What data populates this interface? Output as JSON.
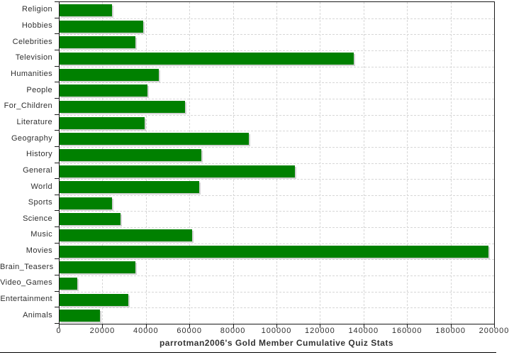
{
  "chart_data": {
    "type": "bar",
    "orientation": "horizontal",
    "title": "parrotman2006's Gold Member Cumulative Quiz Stats",
    "categories": [
      "Religion",
      "Hobbies",
      "Celebrities",
      "Television",
      "Humanities",
      "People",
      "For_Children",
      "Literature",
      "Geography",
      "History",
      "General",
      "World",
      "Sports",
      "Science",
      "Music",
      "Movies",
      "Brain_Teasers",
      "Video_Games",
      "Entertainment",
      "Animals"
    ],
    "values": [
      24000,
      38500,
      35000,
      135000,
      45500,
      40500,
      57500,
      39000,
      87000,
      65000,
      108000,
      64000,
      24000,
      28000,
      61000,
      197000,
      35000,
      8000,
      31500,
      18500
    ],
    "xlabel": "",
    "ylabel": "",
    "xlim": [
      0,
      200000
    ],
    "x_tick_interval": 20000,
    "x_tick_labels": [
      "0",
      "20000",
      "40000",
      "60000",
      "80000",
      "100000",
      "120000",
      "140000",
      "160000",
      "180000",
      "200000"
    ],
    "grid": true,
    "legend": "none",
    "bar_color": "#008000",
    "bar_shadow_color": "#d3d3d3",
    "gridline_color": "#d7d7d7",
    "axis_color": "#1a1a1a",
    "text_color": "#2e2e2e",
    "background_color": "#ffffff"
  }
}
